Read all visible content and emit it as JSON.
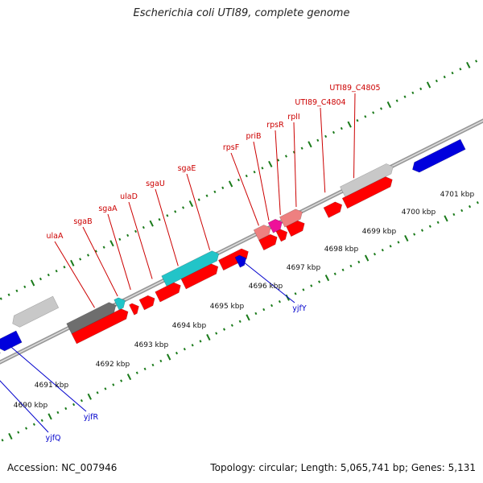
{
  "title": "Escherichia coli UTI89, complete genome",
  "footer": {
    "accession": "Accession: NC_007946",
    "stats": "Topology: circular; Length: 5,065,741 bp; Genes: 5,131"
  },
  "colors": {
    "forward_gene": "#ff0000",
    "forward_label": "#cc0000",
    "reverse_gene": "#0000dd",
    "reverse_label": "#0000cc",
    "cyan_gene": "#22c4c8",
    "gray_gene": "#c8c8c8",
    "darkgray_gene": "#6e6e6e",
    "pink_gene": "#ee8080",
    "magenta_gene": "#ee1099",
    "backbone": "#888888",
    "tick": "#1a7a1a"
  },
  "scale_labels": [
    "4690 kbp",
    "4691 kbp",
    "4692 kbp",
    "4693 kbp",
    "4694 kbp",
    "4695 kbp",
    "4696 kbp",
    "4697 kbp",
    "4698 kbp",
    "4699 kbp",
    "4700 kbp",
    "4701 kbp"
  ],
  "forward_gene_labels": [
    "ulaA",
    "sgaB",
    "sgaA",
    "ulaD",
    "sgaU",
    "sgaE",
    "rpsF",
    "priB",
    "rpsR",
    "rplI",
    "UTI89_C4804",
    "UTI89_C4805"
  ],
  "reverse_gene_labels": [
    "yjfQ",
    "yjfR",
    "yjfY"
  ]
}
